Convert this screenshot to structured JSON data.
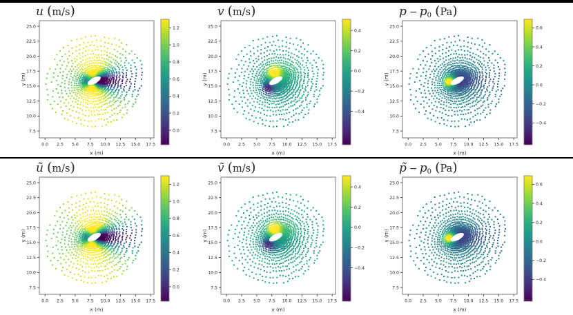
{
  "figure": {
    "rows": 2,
    "cols": 3,
    "background": "#ffffff",
    "top_bar_color": "#000000",
    "separator_color": "#000000"
  },
  "chart_data": {
    "type": "scatter",
    "colormap": "viridis",
    "xlabel": "x (m)",
    "ylabel": "y (m)",
    "x_tick_values": [
      0,
      2.5,
      5,
      7.5,
      10,
      12.5,
      15,
      17.5
    ],
    "x_tick_labels": [
      "0.0",
      "2.5",
      "5.0",
      "7.5",
      "10.0",
      "12.5",
      "15.0",
      "17.5"
    ],
    "y_tick_values": [
      25,
      22.5,
      20,
      17.5,
      15,
      12.5,
      10,
      7.5
    ],
    "y_tick_labels": [
      "25.0",
      "22.5",
      "20.0",
      "17.5",
      "15.0",
      "12.5",
      "10.0",
      "7.5"
    ],
    "xlim": [
      -0.92,
      18.2
    ],
    "ylim": [
      6.36,
      25.92
    ],
    "marker": "square",
    "marker_size_px": 2.0,
    "point_cloud": {
      "description": "body-fitted O-mesh point cloud around a tilted elliptic body",
      "center": [
        8.15,
        15.9
      ],
      "body": {
        "semi_major": 1.1,
        "semi_minor": 0.4,
        "tilt_deg": 28
      },
      "rings": {
        "r_first": 0.25,
        "inner_count": 7,
        "inner_spacing": 0.1,
        "outer_count": 13,
        "outer_first_spacing": 0.24,
        "outer_growth": 1.13
      },
      "spokes": 72,
      "wake_clustering": 0.3,
      "swirl": -0.085,
      "jitter": {
        "base": 0.02,
        "per_radius": 0.027
      },
      "max_radius": 9.6,
      "outer_dropout_start": 5.0,
      "outer_dropout_rate": 0.025,
      "seed": 42
    },
    "field_model": {
      "u": {
        "freestream": 1.1,
        "doublet": 0.18,
        "doublet_decay": 30,
        "lobe": 0.28,
        "lobe_center": 1.6,
        "lobe_sigma": 2.2,
        "wake_amp": 1.32,
        "wake_width0": 0.55,
        "wake_spread": 0.16,
        "wake_decay": 7,
        "wake2_amp": 0.24,
        "wake2_width0": 2.2,
        "wake2_spread": 0.25,
        "front_amp": 0.38,
        "front_center": [
          -1.5,
          0
        ],
        "front_sigma2": 1.0,
        "noise": 0.05
      },
      "v": {
        "up_amp": 0.72,
        "up_center": [
          -0.4,
          1.4
        ],
        "up_sigma2": 1.5,
        "down_amp": 0.7,
        "down_center": [
          -1.3,
          -1.4
        ],
        "down_sigma2": 1.6,
        "quad_amp": 0.09,
        "quad_center": 2.2,
        "quad_sigma": 2.5,
        "noise": 0.05
      },
      "p": {
        "stag_amp": 0.85,
        "stag_center": [
          -1.4,
          -0.2
        ],
        "stag_sigma2": 0.8,
        "suction_amp": 0.45,
        "suction_width0": 0.8,
        "suction_spread": 0.2,
        "suction_decay": 5,
        "side_amp": 0.15,
        "side_center": 1.3,
        "side_sigma": 1.6,
        "noise": 0.04
      }
    },
    "panels": [
      {
        "row": 0,
        "col": 0,
        "field": "u",
        "title_segments": [
          {
            "text": "u",
            "style": "var"
          },
          {
            "text": "(m/s)",
            "style": "unit"
          }
        ],
        "vmin": -0.17,
        "vmax": 1.3,
        "colorbar_tick_values": [
          1.2,
          1.0,
          0.8,
          0.6,
          0.4,
          0.2,
          0.0
        ],
        "colorbar_tick_labels": [
          "1.2",
          "1.0",
          "0.8",
          "0.6",
          "0.4",
          "0.2",
          "0.0"
        ]
      },
      {
        "row": 0,
        "col": 1,
        "field": "v",
        "title_segments": [
          {
            "text": "v",
            "style": "var"
          },
          {
            "text": "(m/s)",
            "style": "unit"
          }
        ],
        "vmin": -0.73,
        "vmax": 0.51,
        "colorbar_tick_values": [
          0.4,
          0.2,
          0.0,
          -0.2,
          -0.4
        ],
        "colorbar_tick_labels": [
          "0.4",
          "0.2",
          "0.0",
          "−0.2",
          "−0.4"
        ]
      },
      {
        "row": 0,
        "col": 2,
        "field": "p",
        "title_segments": [
          {
            "text": "p",
            "style": "var"
          },
          {
            "text": "−",
            "style": "op"
          },
          {
            "text": "p",
            "style": "var"
          },
          {
            "text": "0",
            "style": "sub"
          },
          {
            "text": "(Pa)",
            "style": "unit"
          }
        ],
        "vmin": -0.63,
        "vmax": 0.69,
        "colorbar_tick_values": [
          0.6,
          0.4,
          0.2,
          0.0,
          -0.2,
          -0.4
        ],
        "colorbar_tick_labels": [
          "0.6",
          "0.4",
          "0.2",
          "0.0",
          "−0.2",
          "−0.4"
        ]
      },
      {
        "row": 1,
        "col": 0,
        "field": "u",
        "title_segments": [
          {
            "text": "ũ",
            "style": "var"
          },
          {
            "text": "(m/s)",
            "style": "unit"
          }
        ],
        "vmin": -0.17,
        "vmax": 1.3,
        "colorbar_tick_values": [
          1.2,
          1.0,
          0.8,
          0.6,
          0.4,
          0.2,
          0.0
        ],
        "colorbar_tick_labels": [
          "1.2",
          "1.0",
          "0.8",
          "0.6",
          "0.4",
          "0.2",
          "0.0"
        ]
      },
      {
        "row": 1,
        "col": 1,
        "field": "v",
        "title_segments": [
          {
            "text": "ṽ",
            "style": "var"
          },
          {
            "text": "(m/s)",
            "style": "unit"
          }
        ],
        "vmin": -0.73,
        "vmax": 0.51,
        "colorbar_tick_values": [
          0.4,
          0.2,
          0.0,
          -0.2,
          -0.4
        ],
        "colorbar_tick_labels": [
          "0.4",
          "0.2",
          "0.0",
          "−0.2",
          "−0.4"
        ]
      },
      {
        "row": 1,
        "col": 2,
        "field": "p",
        "title_segments": [
          {
            "text": "p̃",
            "style": "var"
          },
          {
            "text": "−",
            "style": "op"
          },
          {
            "text": "p",
            "style": "var"
          },
          {
            "text": "0",
            "style": "sub"
          },
          {
            "text": "(Pa)",
            "style": "unit"
          }
        ],
        "vmin": -0.63,
        "vmax": 0.69,
        "colorbar_tick_values": [
          0.6,
          0.4,
          0.2,
          0.0,
          -0.2,
          -0.4
        ],
        "colorbar_tick_labels": [
          "0.6",
          "0.4",
          "0.2",
          "0.0",
          "−0.2",
          "−0.4"
        ]
      }
    ]
  }
}
